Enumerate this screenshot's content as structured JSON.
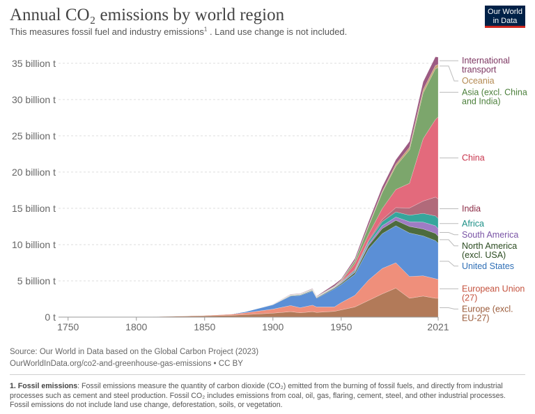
{
  "header": {
    "title": "Annual CO₂ emissions by world region",
    "subtitle_main": "This measures fossil fuel and industry emissions",
    "subtitle_sup": "1",
    "subtitle_rest": " . Land use change is not included.",
    "logo_line1": "Our World",
    "logo_line2": "in Data"
  },
  "footer": {
    "source": "Source: Our World in Data based on the Global Carbon Project (2023)",
    "url": "OurWorldInData.org/co2-and-greenhouse-gas-emissions • CC BY",
    "note_title": "1. Fossil emissions",
    "note_text": ": Fossil emissions measure the quantity of carbon dioxide (CO₂) emitted from the burning of fossil fuels, and directly from industrial processes such as cement and steel production. Fossil CO₂ includes emissions from coal, oil, gas, flaring, cement, steel, and other industrial processes. Fossil emissions do not include land use change, deforestation, soils, or vegetation."
  },
  "chart_data": {
    "type": "area",
    "stacked": true,
    "unit": "billion t",
    "x": [
      1750,
      1800,
      1850,
      1870,
      1880,
      1900,
      1913,
      1920,
      1929,
      1932,
      1945,
      1950,
      1960,
      1970,
      1980,
      1990,
      2000,
      2010,
      2019,
      2021
    ],
    "xlim": [
      1743,
      2021
    ],
    "ylim": [
      0,
      37
    ],
    "x_ticks": [
      "1750",
      "1800",
      "1850",
      "1900",
      "1950",
      "2021"
    ],
    "x_tick_values": [
      1750,
      1800,
      1850,
      1900,
      1950,
      2021
    ],
    "y_ticks": [
      "0 t",
      "5 billion t",
      "10 billion t",
      "15 billion t",
      "20 billion t",
      "25 billion t",
      "30 billion t",
      "35 billion t"
    ],
    "y_tick_values": [
      0,
      5,
      10,
      15,
      20,
      25,
      30,
      35
    ],
    "grid": "horizontal-dashed",
    "series": [
      {
        "name": "Europe (excl. EU-27)",
        "color": "#b27a59",
        "label_color": "#9a5b3a",
        "values": [
          0.01,
          0.03,
          0.18,
          0.25,
          0.35,
          0.55,
          0.75,
          0.6,
          0.75,
          0.65,
          0.8,
          1.0,
          1.4,
          2.3,
          3.2,
          4.0,
          2.6,
          2.9,
          2.6,
          2.6
        ]
      },
      {
        "name": "European Union (27)",
        "color": "#ef8f7b",
        "label_color": "#c4523e",
        "values": [
          0.0,
          0.01,
          0.06,
          0.15,
          0.25,
          0.55,
          0.85,
          0.7,
          0.9,
          0.75,
          0.6,
          1.0,
          1.6,
          2.8,
          3.5,
          3.5,
          3.0,
          2.8,
          2.7,
          2.6
        ]
      },
      {
        "name": "United States",
        "color": "#5b8fd6",
        "label_color": "#2f6fb6",
        "values": [
          0.0,
          0.0,
          0.02,
          0.05,
          0.15,
          0.6,
          1.3,
          1.7,
          1.95,
          1.2,
          2.5,
          2.5,
          2.9,
          4.3,
          4.8,
          5.1,
          6.0,
          5.5,
          5.25,
          5.0
        ]
      },
      {
        "name": "North America (excl. USA)",
        "color": "#4d6b3d",
        "label_color": "#2a4a1f",
        "values": [
          0.0,
          0.0,
          0.0,
          0.0,
          0.01,
          0.03,
          0.07,
          0.07,
          0.09,
          0.07,
          0.12,
          0.15,
          0.25,
          0.45,
          0.7,
          0.75,
          0.9,
          0.95,
          1.0,
          0.95
        ]
      },
      {
        "name": "South America",
        "color": "#9f7cc4",
        "label_color": "#7a54a6",
        "values": [
          0.0,
          0.0,
          0.0,
          0.0,
          0.0,
          0.01,
          0.02,
          0.02,
          0.04,
          0.04,
          0.05,
          0.08,
          0.15,
          0.25,
          0.4,
          0.45,
          0.65,
          0.95,
          1.05,
          1.05
        ]
      },
      {
        "name": "Africa",
        "color": "#36a69c",
        "label_color": "#1b8f86",
        "values": [
          0.0,
          0.0,
          0.0,
          0.0,
          0.0,
          0.01,
          0.02,
          0.02,
          0.03,
          0.03,
          0.04,
          0.08,
          0.15,
          0.3,
          0.55,
          0.7,
          0.9,
          1.2,
          1.35,
          1.4
        ]
      },
      {
        "name": "India",
        "color": "#b16a7a",
        "label_color": "#8b2b45",
        "values": [
          0.0,
          0.0,
          0.0,
          0.0,
          0.01,
          0.02,
          0.03,
          0.03,
          0.04,
          0.03,
          0.05,
          0.07,
          0.12,
          0.2,
          0.3,
          0.6,
          1.0,
          1.7,
          2.6,
          2.7
        ]
      },
      {
        "name": "China",
        "color": "#e36a7c",
        "label_color": "#c8344c",
        "values": [
          0.0,
          0.0,
          0.0,
          0.0,
          0.0,
          0.0,
          0.01,
          0.01,
          0.01,
          0.01,
          0.02,
          0.08,
          0.8,
          0.8,
          1.5,
          2.5,
          3.4,
          8.6,
          10.7,
          11.3
        ]
      },
      {
        "name": "Asia (excl. China and India)",
        "color": "#7ca66c",
        "label_color": "#4b7f3a",
        "values": [
          0.0,
          0.0,
          0.0,
          0.0,
          0.0,
          0.01,
          0.04,
          0.04,
          0.06,
          0.05,
          0.06,
          0.1,
          0.35,
          1.1,
          2.2,
          3.2,
          4.6,
          6.3,
          7.0,
          6.8
        ]
      },
      {
        "name": "Oceania",
        "color": "#c7a474",
        "label_color": "#b48a52",
        "values": [
          0.0,
          0.0,
          0.0,
          0.0,
          0.0,
          0.01,
          0.02,
          0.02,
          0.02,
          0.02,
          0.03,
          0.05,
          0.08,
          0.15,
          0.2,
          0.3,
          0.38,
          0.45,
          0.45,
          0.45
        ]
      },
      {
        "name": "International transport",
        "color": "#9c5b82",
        "label_color": "#7d3661",
        "values": [
          0.0,
          0.0,
          0.0,
          0.0,
          0.0,
          0.01,
          0.05,
          0.05,
          0.06,
          0.05,
          0.25,
          0.15,
          0.3,
          0.5,
          0.6,
          0.6,
          0.8,
          1.1,
          1.2,
          1.0
        ]
      }
    ]
  }
}
